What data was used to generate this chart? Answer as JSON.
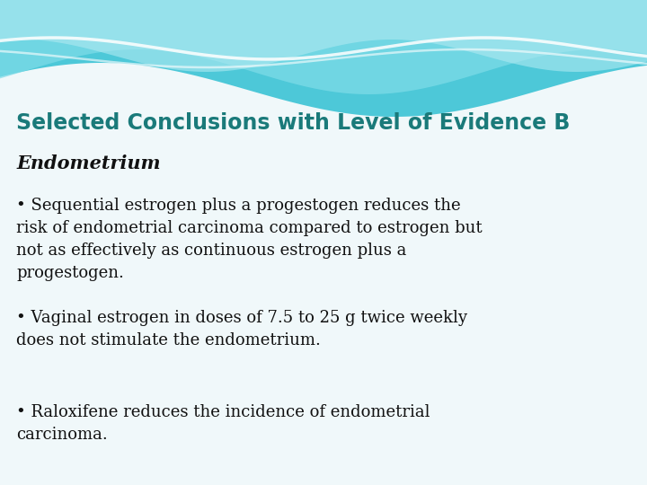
{
  "title": "Selected Conclusions with Level of Evidence B",
  "title_color": "#1a7a7a",
  "title_fontsize": 17,
  "subtitle": "Endometrium",
  "subtitle_fontsize": 15,
  "subtitle_color": "#111111",
  "bullets": [
    "• Sequential estrogen plus a progestogen reduces the\nrisk of endometrial carcinoma compared to estrogen but\nnot as effectively as continuous estrogen plus a\nprogestogen.",
    "• Vaginal estrogen in doses of 7.5 to 25 g twice weekly\ndoes not stimulate the endometrium.",
    "• Raloxifene reduces the incidence of endometrial\ncarcinoma."
  ],
  "bullet_fontsize": 13,
  "bullet_color": "#111111",
  "bg_color": "#f0f8fa",
  "wave_color_top": "#4dc8d8",
  "wave_color_mid": "#80dce8",
  "wave_color_light": "#b0eaf2"
}
